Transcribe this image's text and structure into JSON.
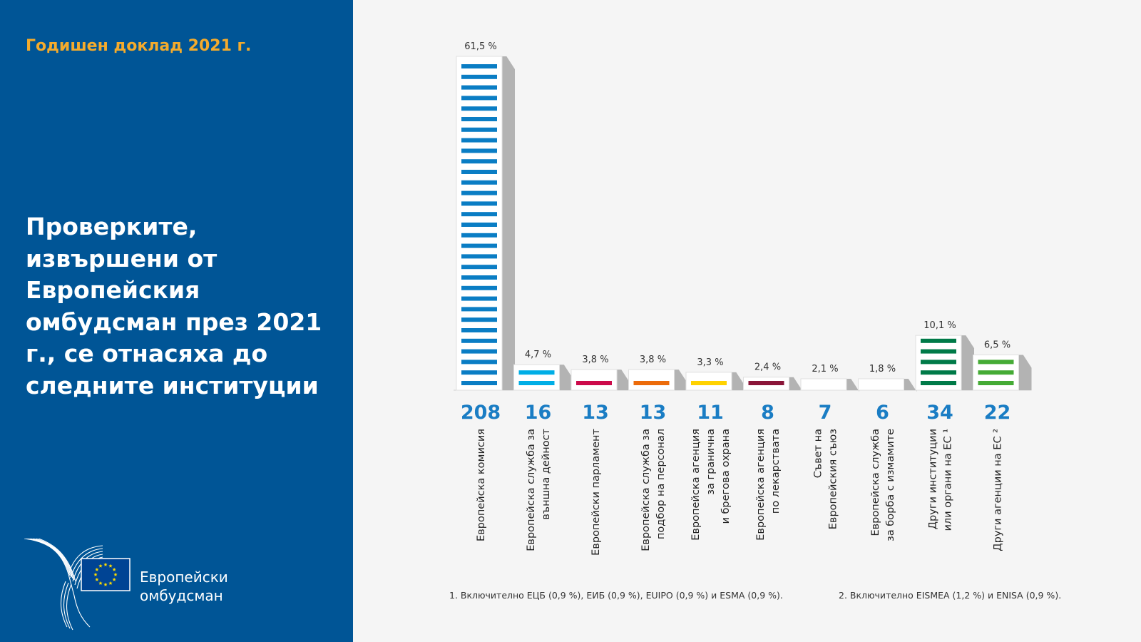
{
  "sidebar": {
    "report_title": "Годишен доклад 2021 г.",
    "main_title": "Проверките, извършени от Европейския омбудсман през 2021 г., се отнасяха до следните институции",
    "logo_line1": "Европейски",
    "logo_line2": "омбудсман",
    "logo_icon": "eu-flag-ombudsman-logo"
  },
  "colors": {
    "sidebar_bg": "#005596",
    "report_title": "#f4ab2c",
    "count_label": "#1a7dc4",
    "bar_side": "#b3b3b3"
  },
  "chart_data": {
    "type": "bar",
    "title": "",
    "xlabel": "",
    "ylabel": "",
    "ylim": [
      0,
      61.5
    ],
    "grid": false,
    "legend": "none",
    "categories": [
      [
        "Европейска комисия"
      ],
      [
        "Европейска служба за",
        "външна дейност"
      ],
      [
        "Европейски парламент"
      ],
      [
        "Европейска служба за",
        "подбор на персонал"
      ],
      [
        "Европейска агенция",
        "за гранична",
        "и брегова охрана"
      ],
      [
        "Европейска агенция",
        "по лекарствата"
      ],
      [
        "Съвет на",
        "Европейския съюз"
      ],
      [
        "Европейска служба",
        "за борба с измамите"
      ],
      [
        "Други институции",
        "или органи на ЕС ¹"
      ],
      [
        "Други агенции на ЕС ²"
      ]
    ],
    "counts": [
      208,
      16,
      13,
      13,
      11,
      8,
      7,
      6,
      34,
      22
    ],
    "count_labels": [
      "208",
      "16",
      "13",
      "13",
      "11",
      "8",
      "7",
      "6",
      "34",
      "22"
    ],
    "percent": [
      61.5,
      4.7,
      3.8,
      3.8,
      3.3,
      2.4,
      2.1,
      1.8,
      10.1,
      6.5
    ],
    "percent_labels": [
      "61,5 %",
      "4,7 %",
      "3,8 %",
      "3,8 %",
      "3,3 %",
      "2,4 %",
      "2,1 %",
      "1,8 %",
      "10,1 %",
      "6,5 %"
    ],
    "bar_colors": [
      "#0a7dc4",
      "#00aee6",
      "#cc0a4a",
      "#ec6b0a",
      "#ffd200",
      "#8a1538",
      "#ee82b4",
      "#005596",
      "#007a48",
      "#45ab35"
    ]
  },
  "footnotes": [
    "1.   Включително ЕЦБ (0,9 %), ЕИБ (0,9 %), EUIPO (0,9 %) и ESMA (0,9 %).",
    "2.   Включително EISMEA  (1,2 %) и ENISA (0,9 %)."
  ]
}
